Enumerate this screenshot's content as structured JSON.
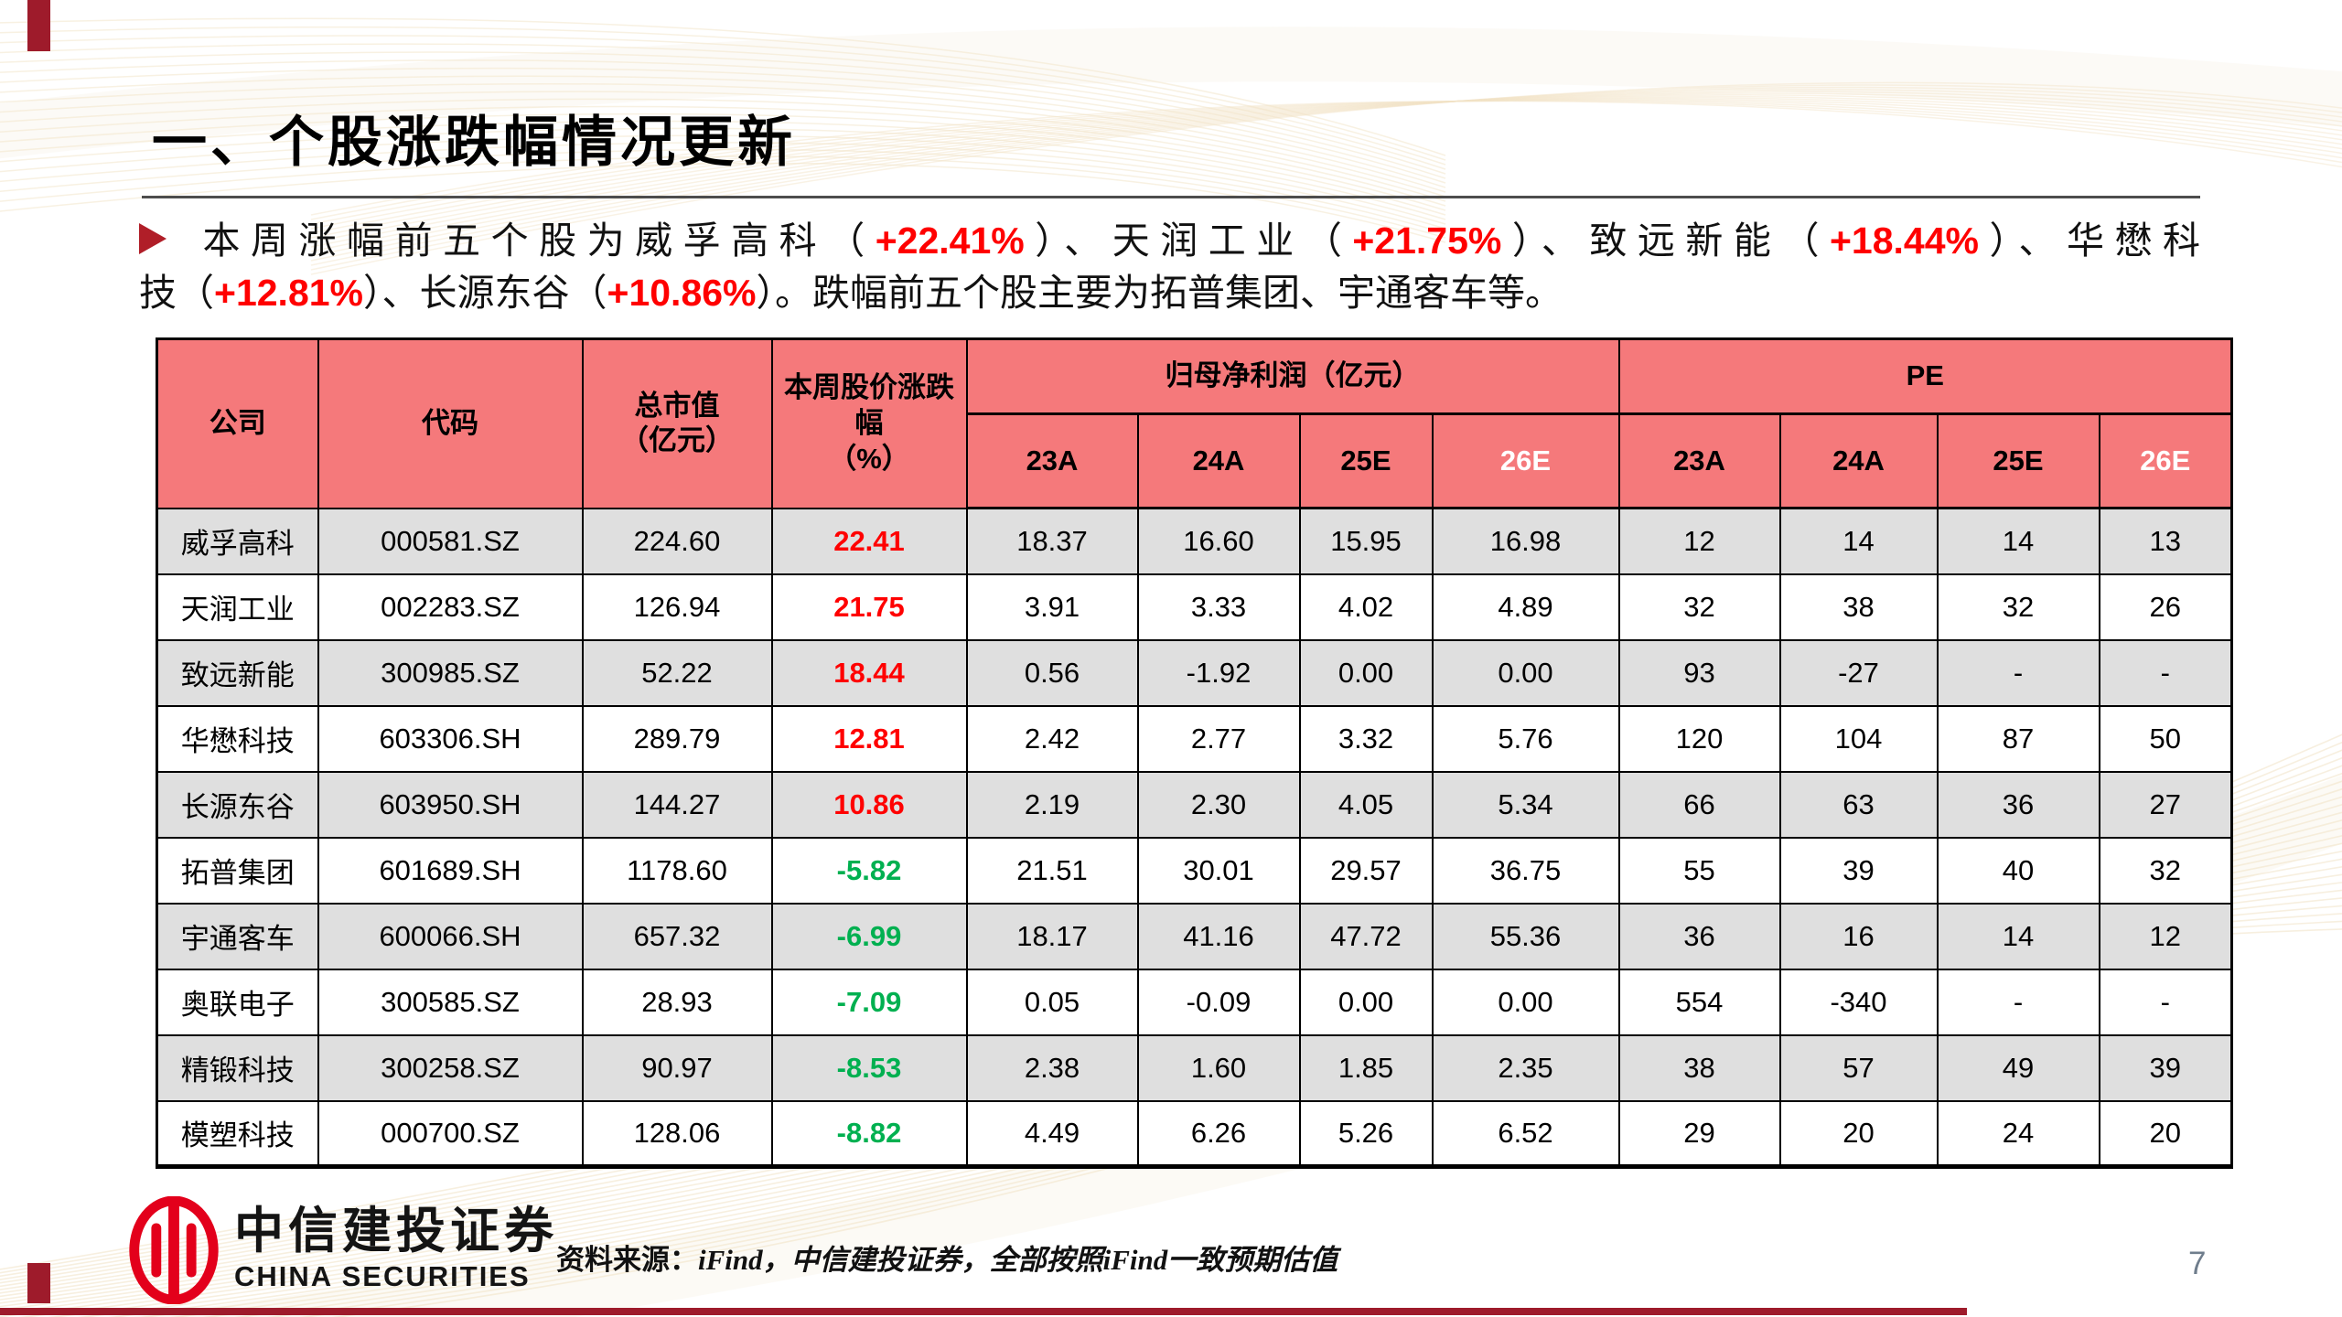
{
  "meta": {
    "page_number": "7"
  },
  "title": "一、个股涨跌幅情况更新",
  "bullet": {
    "marker_icon": "triangle-right",
    "lines": [
      {
        "justify": true,
        "segments": [
          {
            "text": "本周涨幅前五个股为威孚高科（",
            "color": "black"
          },
          {
            "text": "+22.41%",
            "color": "red"
          },
          {
            "text": "）、天润工业（",
            "color": "black"
          },
          {
            "text": "+21.75%",
            "color": "red"
          },
          {
            "text": "）、致远新能（",
            "color": "black"
          },
          {
            "text": "+18.44%",
            "color": "red"
          },
          {
            "text": "）、华懋科",
            "color": "black"
          }
        ]
      },
      {
        "justify": false,
        "segments": [
          {
            "text": "技（",
            "color": "black"
          },
          {
            "text": "+12.81%",
            "color": "red"
          },
          {
            "text": "）、长源东谷（",
            "color": "black"
          },
          {
            "text": "+10.86%",
            "color": "red"
          },
          {
            "text": "）。跌幅前五个股主要为拓普集团、宇通客车等。",
            "color": "black"
          }
        ]
      }
    ]
  },
  "table": {
    "col_headers": {
      "company": "公司",
      "code": "代码",
      "market_cap_l1": "总市值",
      "market_cap_l2": "（亿元）",
      "week_change_l1": "本周股价涨跌幅",
      "week_change_l2": "（%）",
      "net_profit_group": "归母净利润（亿元）",
      "pe_group": "PE",
      "sub_years": [
        {
          "label": "23A",
          "white": false
        },
        {
          "label": "24A",
          "white": false
        },
        {
          "label": "25E",
          "white": false
        },
        {
          "label": "26E",
          "white": true
        }
      ]
    },
    "rows": [
      {
        "company": "威孚高科",
        "code": "000581.SZ",
        "cap": "224.60",
        "chg": "22.41",
        "chg_dir": "up",
        "np": [
          "18.37",
          "16.60",
          "15.95",
          "16.98"
        ],
        "pe": [
          "12",
          "14",
          "14",
          "13"
        ]
      },
      {
        "company": "天润工业",
        "code": "002283.SZ",
        "cap": "126.94",
        "chg": "21.75",
        "chg_dir": "up",
        "np": [
          "3.91",
          "3.33",
          "4.02",
          "4.89"
        ],
        "pe": [
          "32",
          "38",
          "32",
          "26"
        ]
      },
      {
        "company": "致远新能",
        "code": "300985.SZ",
        "cap": "52.22",
        "chg": "18.44",
        "chg_dir": "up",
        "np": [
          "0.56",
          "-1.92",
          "0.00",
          "0.00"
        ],
        "pe": [
          "93",
          "-27",
          "-",
          "-"
        ]
      },
      {
        "company": "华懋科技",
        "code": "603306.SH",
        "cap": "289.79",
        "chg": "12.81",
        "chg_dir": "up",
        "np": [
          "2.42",
          "2.77",
          "3.32",
          "5.76"
        ],
        "pe": [
          "120",
          "104",
          "87",
          "50"
        ]
      },
      {
        "company": "长源东谷",
        "code": "603950.SH",
        "cap": "144.27",
        "chg": "10.86",
        "chg_dir": "up",
        "np": [
          "2.19",
          "2.30",
          "4.05",
          "5.34"
        ],
        "pe": [
          "66",
          "63",
          "36",
          "27"
        ]
      },
      {
        "company": "拓普集团",
        "code": "601689.SH",
        "cap": "1178.60",
        "chg": "-5.82",
        "chg_dir": "down",
        "np": [
          "21.51",
          "30.01",
          "29.57",
          "36.75"
        ],
        "pe": [
          "55",
          "39",
          "40",
          "32"
        ]
      },
      {
        "company": "宇通客车",
        "code": "600066.SH",
        "cap": "657.32",
        "chg": "-6.99",
        "chg_dir": "down",
        "np": [
          "18.17",
          "41.16",
          "47.72",
          "55.36"
        ],
        "pe": [
          "36",
          "16",
          "14",
          "12"
        ]
      },
      {
        "company": "奥联电子",
        "code": "300585.SZ",
        "cap": "28.93",
        "chg": "-7.09",
        "chg_dir": "down",
        "np": [
          "0.05",
          "-0.09",
          "0.00",
          "0.00"
        ],
        "pe": [
          "554",
          "-340",
          "-",
          "-"
        ]
      },
      {
        "company": "精锻科技",
        "code": "300258.SZ",
        "cap": "90.97",
        "chg": "-8.53",
        "chg_dir": "down",
        "np": [
          "2.38",
          "1.60",
          "1.85",
          "2.35"
        ],
        "pe": [
          "38",
          "57",
          "49",
          "39"
        ]
      },
      {
        "company": "模塑科技",
        "code": "000700.SZ",
        "cap": "128.06",
        "chg": "-8.82",
        "chg_dir": "down",
        "np": [
          "4.49",
          "6.26",
          "5.26",
          "6.52"
        ],
        "pe": [
          "29",
          "20",
          "24",
          "20"
        ]
      }
    ]
  },
  "footer": {
    "logo_cn": "中信建投证券",
    "logo_en": "CHINA SECURITIES",
    "source_prefix": "资料来源：",
    "source_rest": "iFind，中信建投证券，全部按照iFind一致预期估值"
  },
  "icons": {
    "bullet_marker": "triangle-right-icon",
    "logo_emblem": "citic-oval-emblem-icon"
  },
  "colors": {
    "up": "#FF0000",
    "down": "#00B050",
    "header_pink": "#F5797B",
    "bar_red": "#9E1B2B",
    "bullet_red": "#B01E28",
    "logo_red": "#E3001B",
    "row_gray": "#DFDFDF",
    "page_number_gray": "#6F7D8C"
  }
}
